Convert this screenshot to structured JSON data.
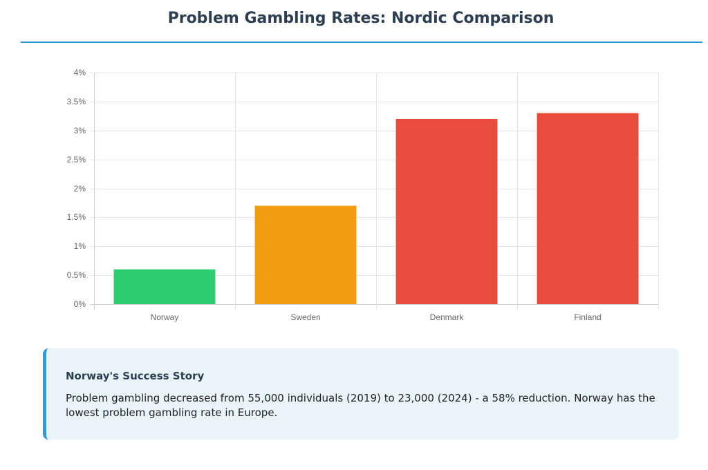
{
  "header": {
    "title": "Problem Gambling Rates: Nordic Comparison"
  },
  "chart_data": {
    "type": "bar",
    "title": "Problem Gambling Rates: Nordic Comparison",
    "xlabel": "",
    "ylabel": "",
    "categories": [
      "Norway",
      "Sweden",
      "Denmark",
      "Finland"
    ],
    "values": [
      0.6,
      1.7,
      3.2,
      3.3
    ],
    "colors": [
      "#2ecc71",
      "#f39c12",
      "#e74c3c",
      "#e74c3c"
    ],
    "ylim": [
      0,
      4
    ],
    "yticks": [
      "0%",
      "0.5%",
      "1%",
      "1.5%",
      "2%",
      "2.5%",
      "3%",
      "3.5%",
      "4%"
    ],
    "value_format": "percent",
    "grid": true,
    "legend": "none"
  },
  "callout": {
    "heading": "Norway's Success Story",
    "body": "Problem gambling decreased from 55,000 individuals (2019) to 23,000 (2024) - a 58% reduction. Norway has the lowest problem gambling rate in Europe."
  },
  "colors": {
    "accent": "#3498db",
    "title": "#2c3e50",
    "callout_bg": "#e8f4f8"
  }
}
